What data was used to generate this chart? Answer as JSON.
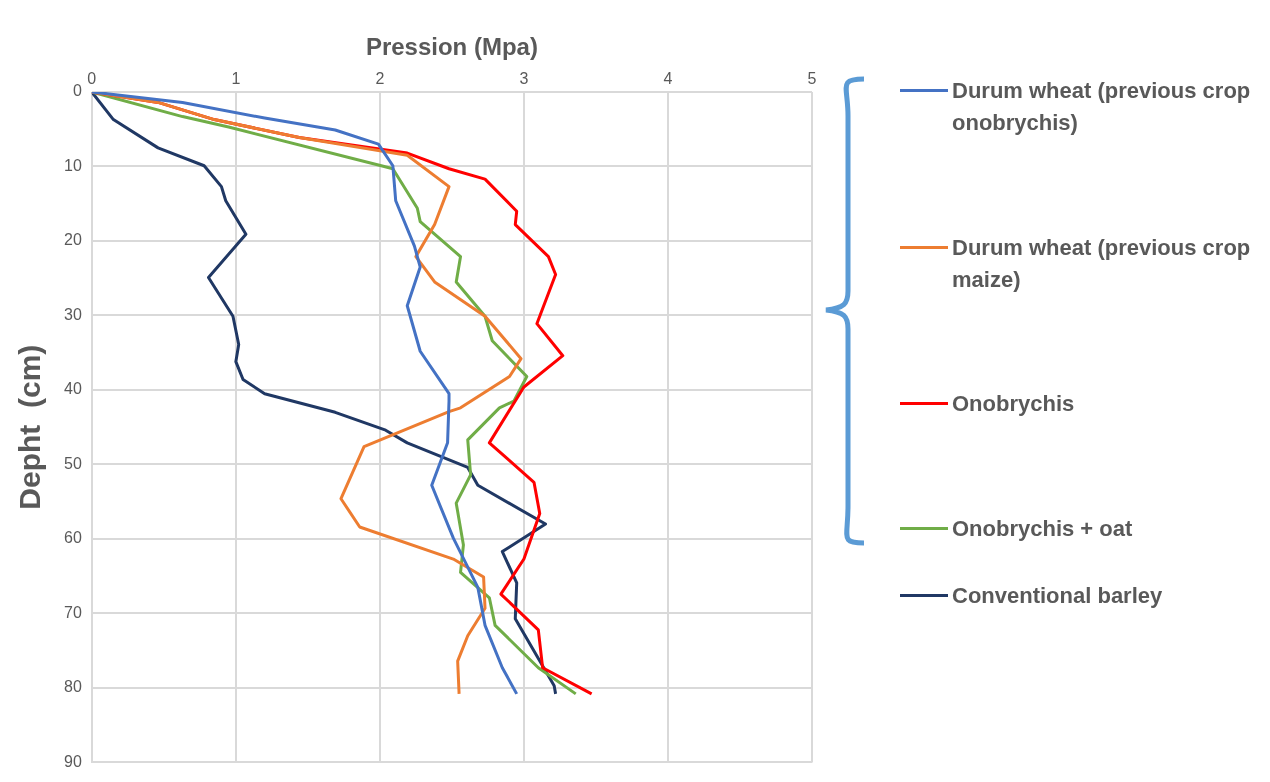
{
  "chart_data": {
    "type": "line",
    "xlabel": "Pression (Mpa)",
    "ylabel": "Depht  (cm)",
    "xlim": [
      0,
      5
    ],
    "xticks": [
      0,
      1,
      2,
      3,
      4,
      5
    ],
    "ylim": [
      90,
      0
    ],
    "yticks": [
      0,
      10,
      20,
      30,
      40,
      50,
      60,
      70,
      80,
      90
    ],
    "grid": true,
    "legend": "right",
    "marker": "none",
    "line_style": "solid",
    "series": [
      {
        "name": "Durum wheat (previous crop onobrychis)",
        "color": "#4472c4",
        "x": [
          0,
          0.63,
          1.2,
          1.69,
          1.99,
          2.09,
          2.11,
          2.24,
          2.28,
          2.19,
          2.28,
          2.48,
          2.48,
          2.47,
          2.36,
          2.51,
          2.68,
          2.73,
          2.85,
          2.95
        ],
        "values": [
          0,
          1.4,
          3.5,
          5.1,
          7.0,
          9.9,
          14.6,
          20.7,
          23.5,
          28.7,
          34.8,
          40.5,
          41.5,
          47.1,
          52.8,
          59.9,
          66.5,
          71.6,
          77.3,
          80.8
        ]
      },
      {
        "name": "Durum wheat (previous crop maize)",
        "color": "#ed7d31",
        "x": [
          0,
          0.46,
          0.85,
          1.44,
          2.19,
          2.48,
          2.38,
          2.25,
          2.38,
          2.73,
          2.98,
          2.9,
          2.56,
          2.48,
          1.89,
          1.73,
          1.86,
          2.51,
          2.72,
          2.73,
          2.61,
          2.54,
          2.55
        ],
        "values": [
          0,
          1.4,
          3.7,
          6.1,
          8.5,
          12.7,
          17.8,
          22.1,
          25.5,
          30.1,
          35.8,
          38.2,
          42.4,
          42.9,
          47.6,
          54.6,
          58.4,
          62.7,
          65.1,
          69.3,
          73.0,
          76.4,
          80.8
        ]
      },
      {
        "name": "Onobrychis",
        "color": "#ff0000",
        "x": [
          0,
          0.46,
          0.85,
          1.44,
          2.19,
          2.48,
          2.73,
          2.95,
          2.94,
          3.17,
          3.22,
          3.09,
          3.27,
          3.0,
          2.76,
          3.07,
          3.11,
          3.0,
          2.84,
          3.1,
          3.13,
          3.47
        ],
        "values": [
          0,
          1.4,
          3.7,
          6.1,
          8.2,
          10.3,
          11.7,
          16.0,
          17.8,
          22.1,
          24.5,
          31.1,
          35.4,
          39.6,
          47.1,
          52.4,
          56.6,
          62.7,
          67.4,
          72.2,
          77.3,
          80.8
        ]
      },
      {
        "name": "Onobrychis + oat",
        "color": "#70ad47",
        "x": [
          0,
          0.63,
          0.95,
          2.01,
          2.09,
          2.26,
          2.28,
          2.56,
          2.53,
          2.73,
          2.78,
          3.02,
          2.93,
          2.83,
          2.61,
          2.63,
          2.53,
          2.58,
          2.56,
          2.76,
          2.8,
          3.1,
          3.36
        ],
        "values": [
          0,
          3.3,
          4.7,
          9.9,
          10.3,
          15.6,
          17.4,
          22.1,
          25.5,
          30.1,
          33.4,
          38.2,
          41.5,
          42.4,
          46.7,
          51.4,
          55.2,
          60.8,
          64.5,
          67.9,
          71.6,
          77.3,
          80.8
        ]
      },
      {
        "name": "Conventional barley",
        "color": "#203864",
        "x": [
          0,
          0.15,
          0.46,
          0.78,
          0.9,
          0.93,
          1.07,
          0.81,
          0.98,
          1.02,
          1.0,
          1.05,
          1.2,
          1.69,
          2.04,
          2.19,
          2.61,
          2.68,
          3.15,
          2.85,
          2.95,
          2.94,
          3.21,
          3.22
        ],
        "values": [
          0,
          3.7,
          7.5,
          9.9,
          12.7,
          14.6,
          19.1,
          24.9,
          30.1,
          33.9,
          36.2,
          38.6,
          40.5,
          43.0,
          45.4,
          47.1,
          50.4,
          52.8,
          58.0,
          61.7,
          65.9,
          70.7,
          79.7,
          80.8
        ]
      }
    ]
  }
}
